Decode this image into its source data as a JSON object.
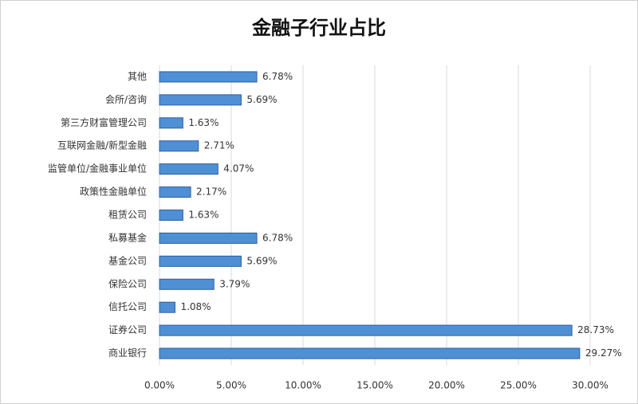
{
  "chart_data": {
    "type": "hbar",
    "title": "金融子行业占比",
    "categories": [
      "其他",
      "会所/咨询",
      "第三方财富管理公司",
      "互联网金融/新型金融",
      "监管单位/金融事业单位",
      "政策性金融单位",
      "租赁公司",
      "私募基金",
      "基金公司",
      "保险公司",
      "信托公司",
      "证券公司",
      "商业银行"
    ],
    "values": [
      6.78,
      5.69,
      1.63,
      2.71,
      4.07,
      2.17,
      1.63,
      6.78,
      5.69,
      3.79,
      1.08,
      28.73,
      29.27
    ],
    "value_labels": [
      "6.78%",
      "5.69%",
      "1.63%",
      "2.71%",
      "4.07%",
      "2.17%",
      "1.63%",
      "6.78%",
      "5.69%",
      "3.79%",
      "1.08%",
      "28.73%",
      "29.27%"
    ],
    "color": "#4f8fd6",
    "xlim": [
      0,
      30
    ],
    "xticks": [
      {
        "value": 0,
        "label": "0.00%"
      },
      {
        "value": 5,
        "label": "5.00%"
      },
      {
        "value": 10,
        "label": "10.00%"
      },
      {
        "value": 15,
        "label": "15.00%"
      },
      {
        "value": 20,
        "label": "20.00%"
      },
      {
        "value": 25,
        "label": "25.00%"
      },
      {
        "value": 30,
        "label": "30.00%"
      }
    ],
    "grid": true
  }
}
